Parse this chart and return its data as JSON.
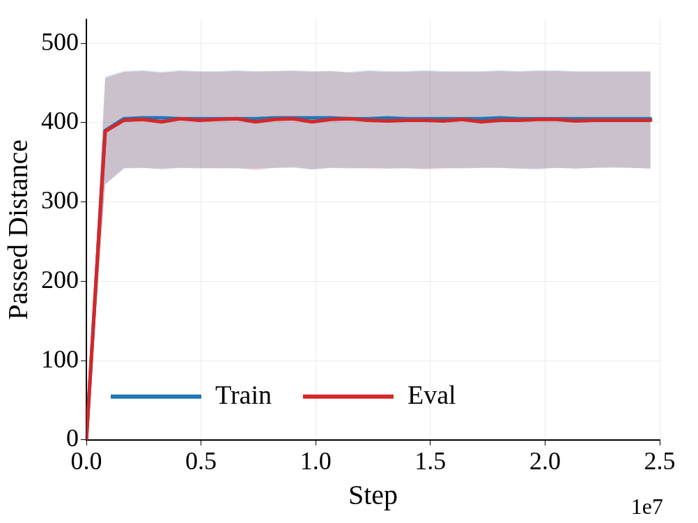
{
  "chart_data": {
    "type": "line",
    "xlabel": "Step",
    "ylabel": "Passed Distance",
    "x": [
      0,
      0.082,
      0.164,
      0.246,
      0.328,
      0.41,
      0.492,
      0.574,
      0.656,
      0.738,
      0.82,
      0.902,
      0.984,
      1.066,
      1.148,
      1.23,
      1.312,
      1.394,
      1.476,
      1.558,
      1.64,
      1.722,
      1.804,
      1.886,
      1.968,
      2.05,
      2.132,
      2.214,
      2.296,
      2.378,
      2.46
    ],
    "series": [
      {
        "name": "Train",
        "color": "#1f77b4",
        "values": [
          0,
          390,
          405,
          406,
          406,
          405,
          405,
          405,
          405,
          405,
          406,
          406,
          406,
          406,
          405,
          405,
          406,
          405,
          405,
          405,
          405,
          405,
          406,
          405,
          405,
          405,
          405,
          405,
          405,
          405,
          405
        ],
        "lower": [
          0,
          322,
          342,
          343,
          341,
          343,
          342,
          343,
          342,
          342,
          343,
          343,
          341,
          343,
          342,
          343,
          342,
          342,
          342,
          343,
          342,
          343,
          343,
          342,
          341,
          343,
          342,
          343,
          343,
          343,
          342
        ],
        "upper": [
          0,
          458,
          465,
          466,
          464,
          466,
          465,
          465,
          466,
          465,
          465,
          466,
          465,
          465,
          464,
          466,
          465,
          465,
          466,
          465,
          465,
          465,
          466,
          465,
          466,
          466,
          465,
          465,
          465,
          465,
          465
        ]
      },
      {
        "name": "Eval",
        "color": "#d62728",
        "values": [
          0,
          389,
          403,
          404,
          401,
          405,
          403,
          404,
          405,
          401,
          404,
          405,
          401,
          404,
          405,
          403,
          402,
          403,
          403,
          402,
          404,
          401,
          403,
          403,
          404,
          404,
          402,
          403,
          403,
          403,
          403
        ],
        "lower": [
          0,
          322,
          343,
          343,
          342,
          343,
          343,
          342,
          343,
          340,
          343,
          344,
          341,
          343,
          343,
          342,
          342,
          343,
          341,
          342,
          343,
          343,
          343,
          342,
          342,
          343,
          342,
          343,
          344,
          343,
          342
        ],
        "upper": [
          0,
          456,
          464,
          465,
          463,
          465,
          464,
          464,
          465,
          464,
          465,
          465,
          464,
          465,
          463,
          465,
          464,
          464,
          465,
          464,
          464,
          464,
          465,
          464,
          465,
          465,
          464,
          464,
          464,
          464,
          464
        ]
      }
    ],
    "xlim": [
      0,
      2.5
    ],
    "xticks": [
      {
        "value": 0,
        "label": "0.0"
      },
      0.5,
      {
        "value": 1,
        "label": "1.0"
      },
      1.5,
      {
        "value": 2,
        "label": "2.0"
      },
      2.5
    ],
    "ylim": [
      0,
      530
    ],
    "yticks": [
      0,
      100,
      200,
      300,
      400,
      500
    ],
    "grid": true,
    "legend": "bottom",
    "marker": "none",
    "line_style": "solid",
    "annotations": [
      "1e7"
    ]
  }
}
